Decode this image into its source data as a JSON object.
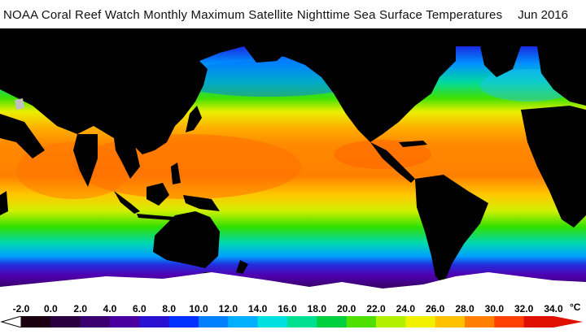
{
  "title": {
    "text": "NOAA Coral Reef Watch Monthly Maximum Satellite Nighttime Sea Surface Temperatures",
    "period": "Jun 2016"
  },
  "colorbar": {
    "ticks": [
      "-2.0",
      "0.0",
      "2.0",
      "4.0",
      "6.0",
      "8.0",
      "10.0",
      "12.0",
      "14.0",
      "16.0",
      "18.0",
      "20.0",
      "22.0",
      "24.0",
      "26.0",
      "28.0",
      "30.0",
      "32.0",
      "34.0"
    ],
    "unit": "°C",
    "colors": [
      "#1a0010",
      "#2a0040",
      "#3a0070",
      "#4a00a0",
      "#2a10d0",
      "#0030ff",
      "#0080ff",
      "#00b0ff",
      "#00e0e0",
      "#00e090",
      "#00d040",
      "#50e000",
      "#b0f000",
      "#f0f000",
      "#ffc000",
      "#ff8000",
      "#ff4000",
      "#e01000"
    ]
  },
  "map_colors": {
    "land": "#000000",
    "ice": "#ffffff",
    "lake": "#c0c0c0"
  }
}
